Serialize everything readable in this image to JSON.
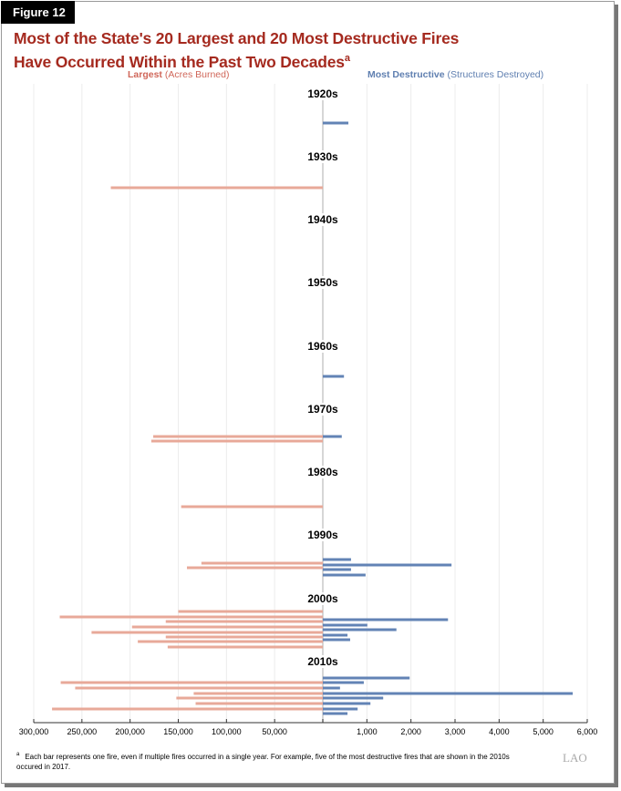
{
  "figure_label": "Figure 12",
  "title_line1": "Most of the State's 20 Largest and 20 Most Destructive Fires",
  "title_line2": "Have Occurred Within the Past Two Decades",
  "title_footnote_mark": "a",
  "footnote_mark": "a",
  "footnote": "Each bar represents one fire, even if multiple fires occurred in a single year. For example, five of the most destructive fires that are shown in the 2010s occured in 2017.",
  "logo": "LAO",
  "colors": {
    "largest": "#e8a999",
    "destructive": "#6283b5",
    "title": "#a52a1f"
  },
  "chart_data": {
    "type": "bar",
    "orientation": "horizontal-butterfly",
    "left_series": {
      "name_bold": "Largest",
      "name_rest": "(Acres Burned)",
      "xlim": [
        0,
        300000
      ],
      "ticks": [
        "300,000",
        "250,000",
        "200,000",
        "150,000",
        "100,000",
        "50,000"
      ]
    },
    "right_series": {
      "name_bold": "Most Destructive",
      "name_rest": "(Structures Destroyed)",
      "xlim": [
        0,
        6000
      ],
      "ticks": [
        "1,000",
        "2,000",
        "3,000",
        "4,000",
        "5,000",
        "6,000"
      ]
    },
    "decades": [
      {
        "label": "1920s",
        "largest": [],
        "destructive": [
          580
        ]
      },
      {
        "label": "1930s",
        "largest": [
          220000
        ],
        "destructive": []
      },
      {
        "label": "1940s",
        "largest": [],
        "destructive": []
      },
      {
        "label": "1950s",
        "largest": [],
        "destructive": []
      },
      {
        "label": "1960s",
        "largest": [],
        "destructive": [
          480
        ]
      },
      {
        "label": "1970s",
        "largest": [
          176000,
          178000
        ],
        "destructive": [
          430
        ]
      },
      {
        "label": "1980s",
        "largest": [
          147000
        ],
        "destructive": []
      },
      {
        "label": "1990s",
        "largest": [
          126000,
          141000
        ],
        "destructive": [
          640,
          2920,
          640,
          970
        ]
      },
      {
        "label": "2000s",
        "largest": [
          150000,
          273000,
          163000,
          198000,
          240000,
          163000,
          192000,
          161000
        ],
        "destructive": [
          2840,
          1010,
          1670,
          560,
          620
        ]
      },
      {
        "label": "2010s",
        "largest": [
          272000,
          257000,
          134000,
          152000,
          132000,
          281000
        ],
        "destructive": [
          1970,
          930,
          390,
          5670,
          1370,
          1080,
          790,
          560
        ]
      }
    ]
  }
}
